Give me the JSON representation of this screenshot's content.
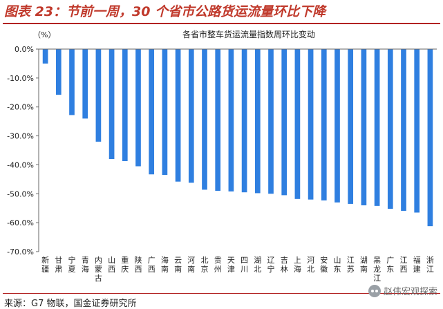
{
  "figure": {
    "title": "图表 23：节前一周，30 个省市公路货运流量环比下降",
    "source": "来源：G7 物联，国金证券研究所",
    "watermark": "赵伟宏观探索",
    "watermark_icon": "wechat-icon"
  },
  "chart_data": {
    "type": "bar",
    "title": "各省市整车货运流量指数周环比变动",
    "ylabel": "（%）",
    "ylim": [
      -70,
      0
    ],
    "yticks": [
      0,
      -10,
      -20,
      -30,
      -40,
      -50,
      -60,
      -70
    ],
    "ytick_labels": [
      "0.0%",
      "-10.0%",
      "-20.0%",
      "-30.0%",
      "-40.0%",
      "-50.0%",
      "-60.0%",
      "-70.0%"
    ],
    "grid": false,
    "bar_color": "#2f7fe0",
    "categories": [
      "新疆",
      "甘肃",
      "宁夏",
      "青海",
      "内蒙古",
      "山西",
      "重庆",
      "陕西",
      "广西",
      "海南",
      "云南",
      "河南",
      "北京",
      "贵州",
      "天津",
      "四川",
      "湖北",
      "辽宁",
      "吉林",
      "上海",
      "河北",
      "安徽",
      "山东",
      "江苏",
      "湖南",
      "黑龙江",
      "广东",
      "江西",
      "福建",
      "浙江"
    ],
    "values": [
      -5,
      -15.8,
      -22.8,
      -24,
      -32,
      -38,
      -38.7,
      -40.5,
      -43.3,
      -43.5,
      -45.8,
      -46.2,
      -48.6,
      -49,
      -49.2,
      -49.5,
      -49.8,
      -50,
      -50.5,
      -51.8,
      -52,
      -52.3,
      -53,
      -53.5,
      -54,
      -54.2,
      -55.2,
      -55.9,
      -56.5,
      -61.2
    ]
  }
}
